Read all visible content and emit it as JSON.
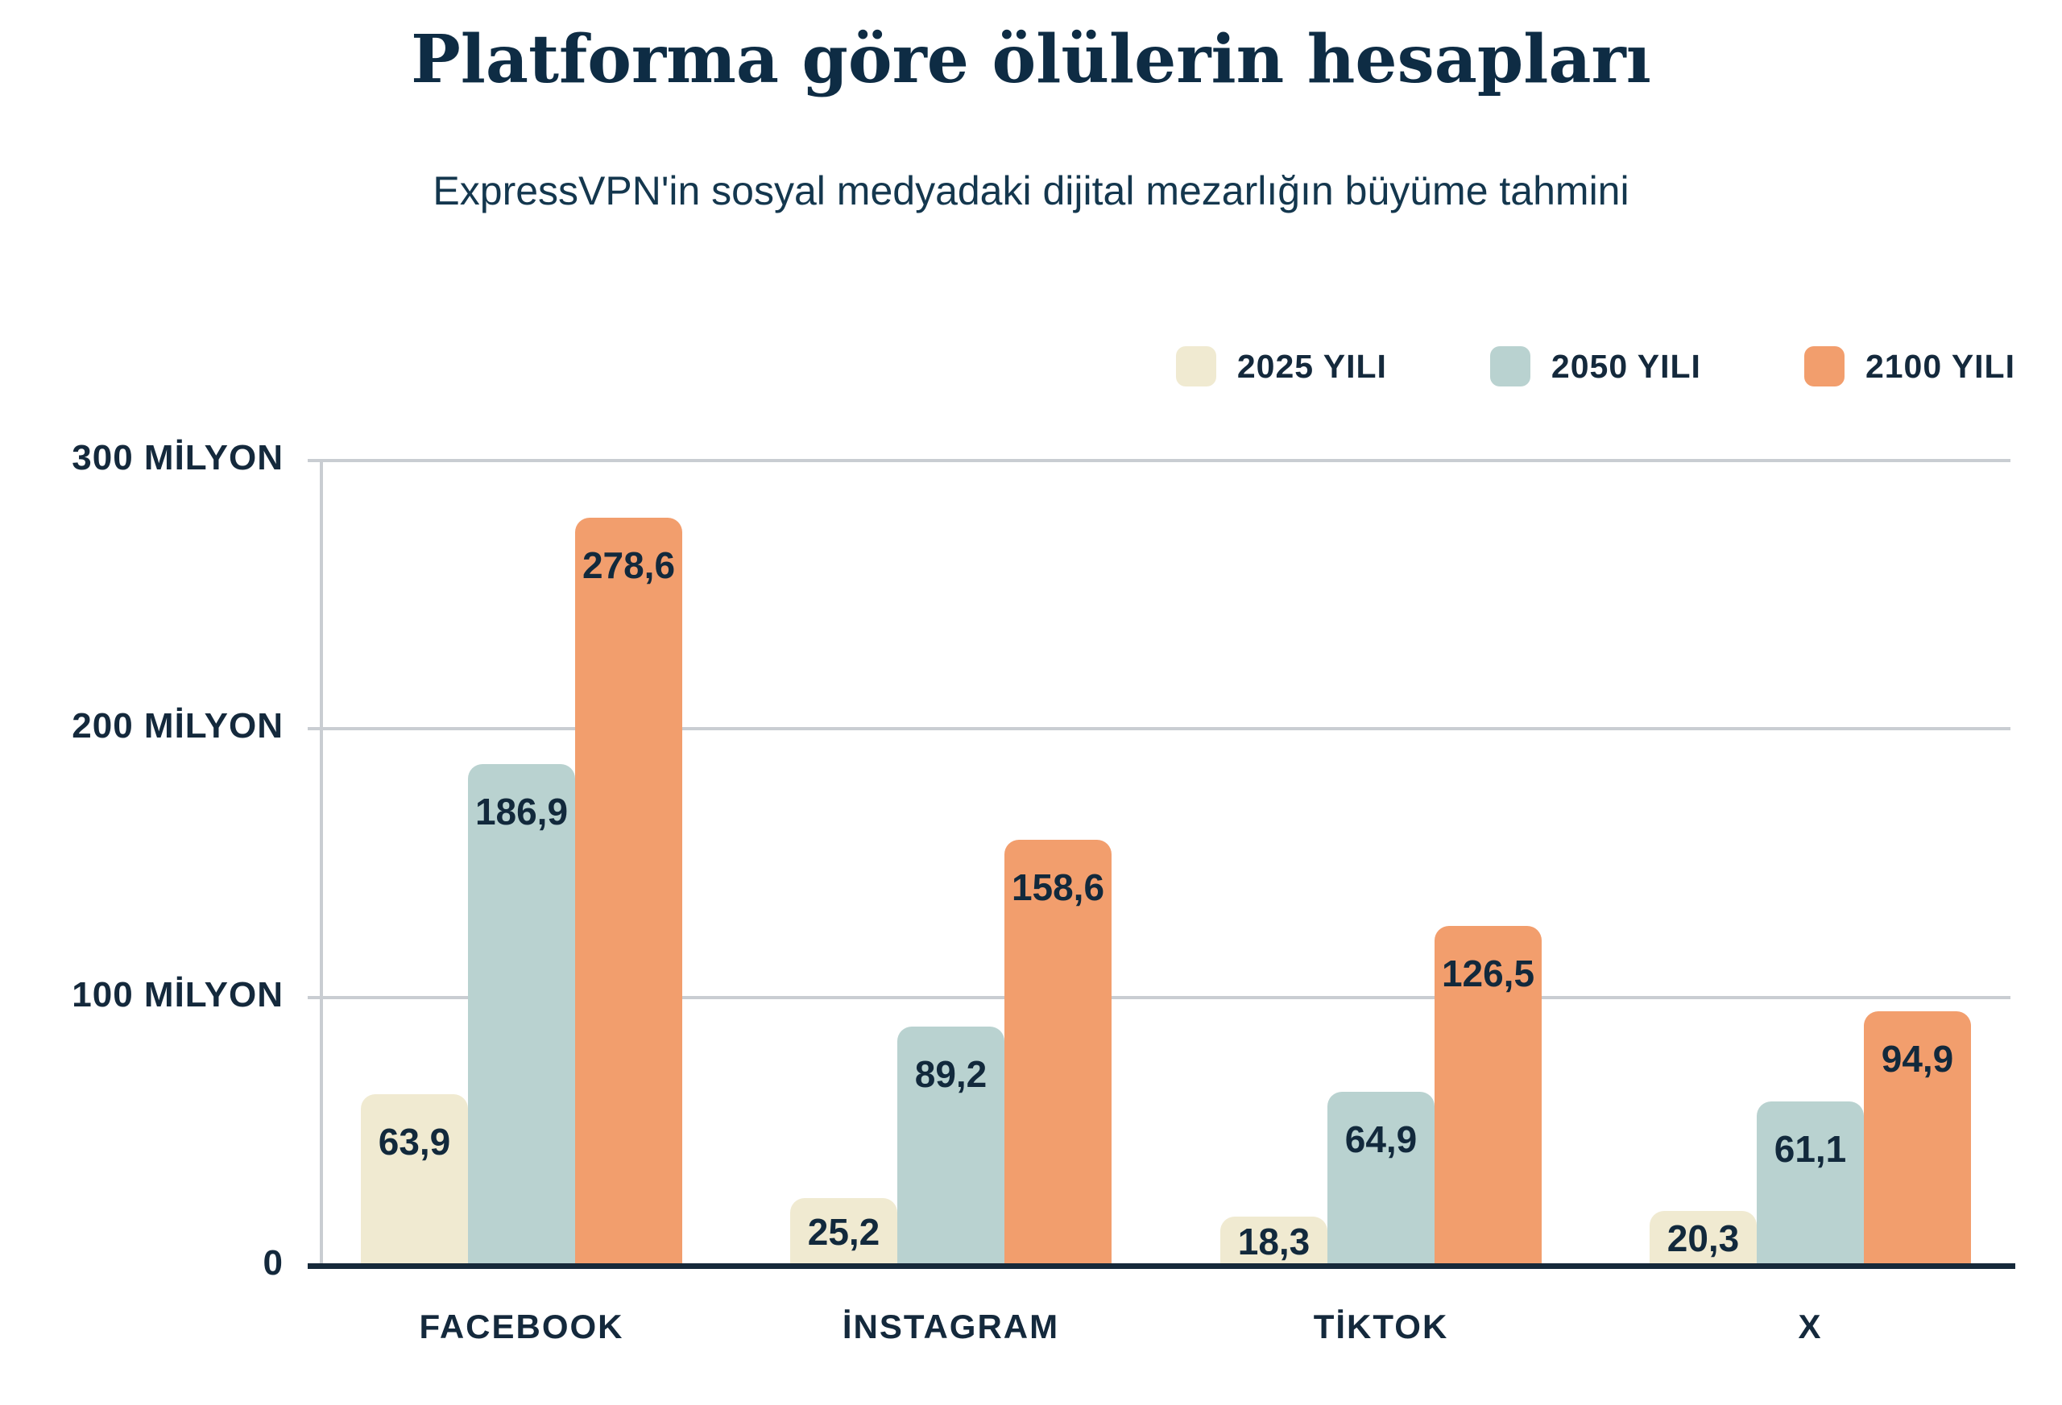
{
  "title": "Platforma göre ölülerin hesapları",
  "subtitle": "ExpressVPN'in sosyal medyadaki dijital mezarlığın büyüme tahmini",
  "colors": {
    "series_2025": "#f0ead1",
    "series_2050": "#b9d2d0",
    "series_2100": "#f29e6d",
    "text_navy": "#14293c",
    "grid_gray": "#c9cdd2",
    "axis_navy": "#16293a",
    "background": "#ffffff"
  },
  "legend": {
    "items": [
      {
        "label": "2025 YILI",
        "color": "#f0ead1"
      },
      {
        "label": "2050 YILI",
        "color": "#b9d2d0"
      },
      {
        "label": "2100 YILI",
        "color": "#f29e6d"
      }
    ]
  },
  "chart_data": {
    "type": "bar",
    "categories": [
      "FACEBOOK",
      "İNSTAGRAM",
      "TİKTOK",
      "X"
    ],
    "series": [
      {
        "name": "2025 YILI",
        "color": "#f0ead1",
        "values": [
          63.9,
          25.2,
          18.3,
          20.3
        ],
        "labels": [
          "63,9",
          "25,2",
          "18,3",
          "20,3"
        ]
      },
      {
        "name": "2050 YILI",
        "color": "#b9d2d0",
        "values": [
          186.9,
          89.2,
          64.9,
          61.1
        ],
        "labels": [
          "186,9",
          "89,2",
          "64,9",
          "61,1"
        ]
      },
      {
        "name": "2100 YILI",
        "color": "#f29e6d",
        "values": [
          278.6,
          158.6,
          126.5,
          94.9
        ],
        "labels": [
          "278,6",
          "158,6",
          "126,5",
          "94,9"
        ]
      }
    ],
    "y_axis": {
      "max": 300,
      "ticks": [
        {
          "value": 300,
          "label": "300 MİLYON"
        },
        {
          "value": 200,
          "label": "200 MİLYON"
        },
        {
          "value": 100,
          "label": "100 MİLYON"
        },
        {
          "value": 0,
          "label": "0"
        }
      ]
    },
    "grid": "horizontal",
    "legend_position": "top-right",
    "ylim": [
      0,
      300
    ]
  }
}
